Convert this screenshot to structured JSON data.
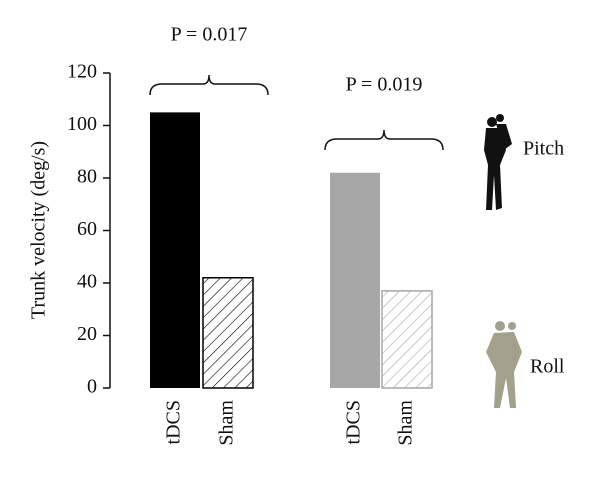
{
  "chart_data": {
    "type": "bar",
    "y_label": "Trunk velocity (deg/s)",
    "categories": [
      "tDCS",
      "Sham",
      "tDCS",
      "Sham"
    ],
    "values": [
      105,
      42,
      82,
      37
    ],
    "colors": [
      "#000000",
      "#000000",
      "#a6a6a6",
      "#a6a6a6"
    ],
    "patterns": [
      "solid",
      "hatched",
      "solid",
      "hatched"
    ],
    "ylim": [
      0,
      120
    ],
    "yticks": [
      0,
      20,
      40,
      60,
      80,
      100,
      120
    ],
    "annotations": [
      "P = 0.017",
      "P = 0.019"
    ],
    "group_labels": [
      "Pitch",
      "Roll"
    ]
  }
}
